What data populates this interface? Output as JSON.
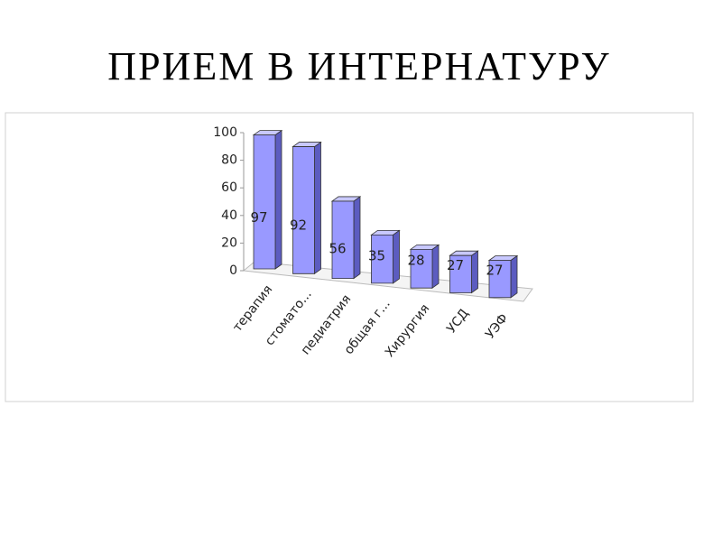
{
  "chart_data": {
    "type": "bar3d",
    "title": "ПРИЕМ  В  ИНТЕРНАТУРУ",
    "categories": [
      "терапия",
      "стомато...",
      "педиатрия",
      "общая г...",
      "Хирургия",
      "УСД",
      "УЭФ"
    ],
    "values": [
      97,
      92,
      56,
      35,
      28,
      27,
      27
    ],
    "color": "#9999ff",
    "ylim": [
      0,
      100
    ],
    "yticks": [
      0,
      20,
      40,
      60,
      80,
      100
    ]
  }
}
